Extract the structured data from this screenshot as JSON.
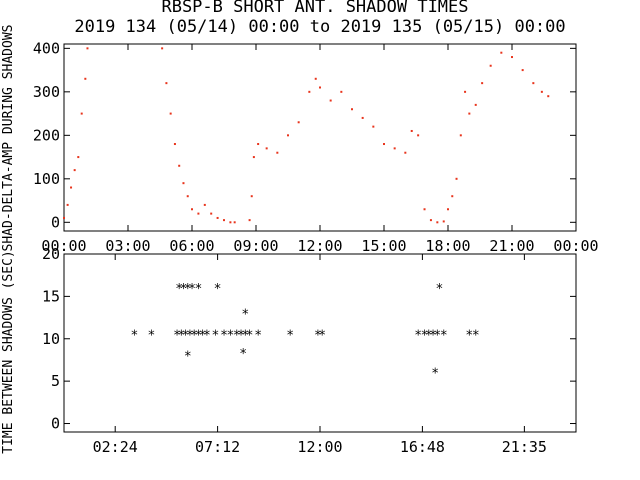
{
  "title": "RBSP-B SHORT ANT. SHADOW TIMES",
  "subtitle": "2019 134 (05/14) 00:00 to 2019 135 (05/15) 00:00",
  "colors": {
    "background": "#ffffff",
    "axes": "#000000",
    "points_top": "#e8341c",
    "points_bottom": "#000000"
  },
  "chart_data": [
    {
      "type": "scatter",
      "ylabel": "SHAD-DELTA-AMP DURING SHADOWS",
      "ylim": [
        -20,
        410
      ],
      "x_range_hours": [
        0,
        24
      ],
      "x_tick_labels": [
        "00:00",
        "03:00",
        "06:00",
        "09:00",
        "12:00",
        "15:00",
        "18:00",
        "21:00",
        "00:00"
      ],
      "y_ticks": [
        0,
        100,
        200,
        300,
        400
      ],
      "series": [
        {
          "color": "#e8341c",
          "x_hours": [
            0.0,
            0.17,
            0.33,
            0.5,
            0.67,
            0.83,
            1.0,
            1.1,
            4.6,
            4.8,
            5.0,
            5.2,
            5.4,
            5.6,
            5.8,
            6.0,
            6.3,
            6.6,
            6.9,
            7.2,
            7.5,
            7.8,
            8.0,
            8.7,
            8.8,
            8.9,
            9.1,
            9.5,
            10.0,
            10.5,
            11.0,
            11.5,
            11.8,
            12.0,
            12.5,
            13.0,
            13.5,
            14.0,
            14.5,
            15.0,
            15.5,
            16.0,
            16.3,
            16.6,
            16.9,
            17.2,
            17.5,
            17.8,
            18.0,
            18.2,
            18.4,
            18.6,
            18.8,
            19.0,
            19.3,
            19.6,
            20.0,
            20.5,
            21.0,
            21.5,
            22.0,
            22.4,
            22.7
          ],
          "y": [
            10,
            40,
            80,
            120,
            150,
            250,
            330,
            400,
            400,
            320,
            250,
            180,
            130,
            90,
            60,
            30,
            20,
            40,
            20,
            10,
            5,
            0,
            0,
            5,
            60,
            150,
            180,
            170,
            160,
            200,
            230,
            300,
            330,
            310,
            280,
            300,
            260,
            240,
            220,
            180,
            170,
            160,
            210,
            200,
            30,
            5,
            0,
            2,
            30,
            60,
            100,
            200,
            300,
            250,
            270,
            320,
            360,
            390,
            380,
            350,
            320,
            300,
            290
          ]
        }
      ]
    },
    {
      "type": "scatter",
      "ylabel": "TIME BETWEEN SHADOWS (SEC)",
      "ylim": [
        -1,
        20
      ],
      "x_range_hours": [
        0,
        24
      ],
      "x_tick_labels": [
        "02:24",
        "07:12",
        "12:00",
        "16:48",
        "21:35"
      ],
      "y_ticks": [
        0,
        5,
        10,
        15,
        20
      ],
      "series": [
        {
          "color": "#000000",
          "x_hours": [
            3.3,
            4.1,
            5.3,
            5.5,
            5.7,
            5.9,
            6.1,
            6.3,
            6.5,
            6.7,
            7.1,
            7.5,
            7.8,
            8.1,
            8.3,
            8.5,
            8.7,
            9.1,
            10.6,
            11.9,
            12.1,
            16.6,
            16.9,
            17.1,
            17.3,
            17.5,
            17.8,
            19.0,
            19.3,
            5.4,
            5.6,
            5.8,
            6.0,
            6.3,
            7.2,
            8.5,
            5.8,
            8.4,
            17.6,
            17.4
          ],
          "y": [
            10.5,
            10.5,
            10.5,
            10.5,
            10.5,
            10.5,
            10.5,
            10.5,
            10.5,
            10.5,
            10.5,
            10.5,
            10.5,
            10.5,
            10.5,
            10.5,
            10.5,
            10.5,
            10.5,
            10.5,
            10.5,
            10.5,
            10.5,
            10.5,
            10.5,
            10.5,
            10.5,
            10.5,
            10.5,
            16,
            16,
            16,
            16,
            16,
            16,
            13,
            8,
            8.3,
            16,
            6
          ]
        }
      ]
    }
  ]
}
